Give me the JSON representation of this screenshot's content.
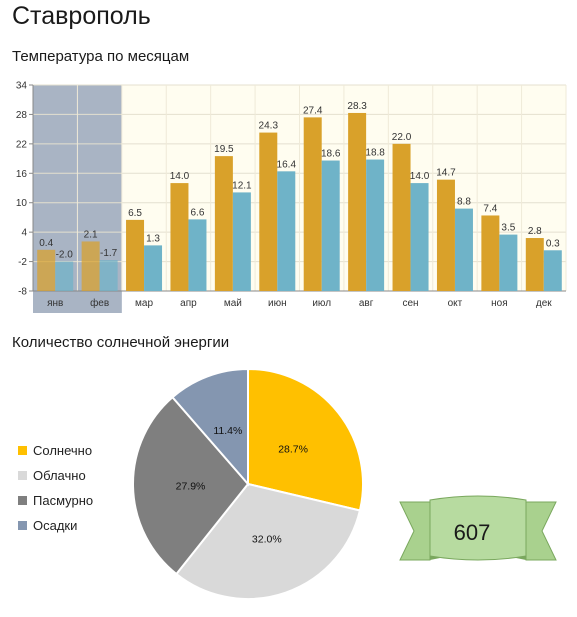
{
  "city": "Ставрополь",
  "temperature_title": "Температура по месяцам",
  "sun_title": "Количество солнечной энергии",
  "badge_value": "607",
  "colors": {
    "series_high": "#d9a12a",
    "series_low": "#6fb3c8",
    "highlight_band": "#a9b4c4",
    "plot_bg": "#fffdf0",
    "sunny": "#ffc000",
    "cloudy": "#d9d9d9",
    "overcast": "#7f7f7f",
    "precip": "#8496b0",
    "badge_fill": "#a9d18e",
    "badge_dark": "#7aa85e"
  },
  "chart_data": [
    {
      "type": "bar",
      "categories": [
        "янв",
        "фев",
        "мар",
        "апр",
        "май",
        "июн",
        "июл",
        "авг",
        "сен",
        "окт",
        "ноя",
        "дек"
      ],
      "series": [
        {
          "values": [
            0.4,
            2.1,
            6.5,
            14.0,
            19.5,
            24.3,
            27.4,
            28.3,
            22.0,
            14.7,
            7.4,
            2.8
          ]
        },
        {
          "values": [
            -2.0,
            -1.7,
            1.3,
            6.6,
            12.1,
            16.4,
            18.6,
            18.8,
            14.0,
            8.8,
            3.5,
            0.3
          ]
        }
      ],
      "data_labels": {
        "high": [
          "0.4",
          "2.1",
          "6.5",
          "14.0",
          "19.5",
          "24.3",
          "27.4",
          "28.3",
          "22.0",
          "14.7",
          "7.4",
          "2.8"
        ],
        "low": [
          "-2.0",
          "-1.7",
          "1.3",
          "6.6",
          "12.1",
          "16.4",
          "18.6",
          "18.8",
          "14.0",
          "8.8",
          "3.5",
          "0.3"
        ]
      },
      "yticks": [
        "34",
        "28",
        "22",
        "16",
        "10",
        "4",
        "-2",
        "-8"
      ],
      "ylim": [
        -8,
        34
      ],
      "highlighted_categories": [
        "янв",
        "фев"
      ],
      "grid": true
    },
    {
      "type": "pie",
      "labels": [
        "Солнечно",
        "Облачно",
        "Пасмурно",
        "Осадки"
      ],
      "values": [
        28.7,
        32.0,
        27.9,
        11.4
      ],
      "value_labels": [
        "28.7%",
        "32.0%",
        "27.9%",
        "11.4%"
      ],
      "legend_position": "left"
    }
  ]
}
